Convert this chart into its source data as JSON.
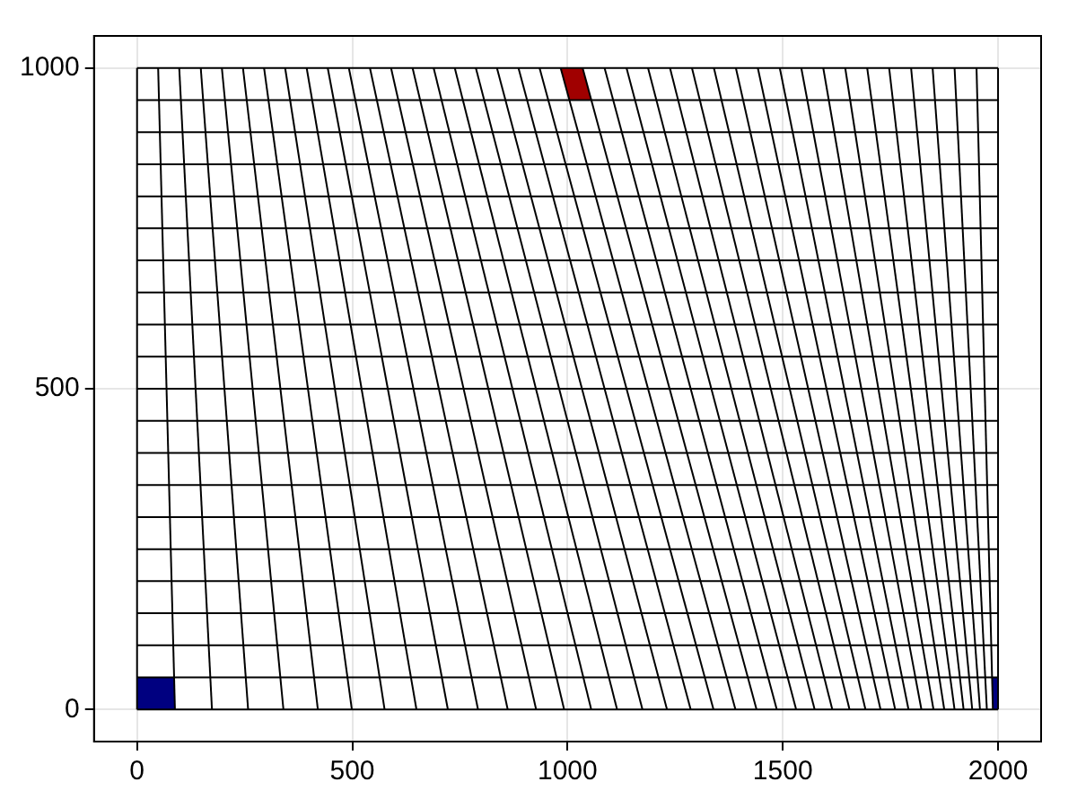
{
  "chart_data": {
    "type": "line",
    "xlim": [
      -100,
      2100
    ],
    "ylim": [
      -50,
      1050
    ],
    "xticks": [
      0,
      500,
      1000,
      1500,
      2000
    ],
    "yticks": [
      0,
      500,
      1000
    ],
    "grid": true,
    "legend": false,
    "marker": "none",
    "line_style": "solid",
    "series": [
      {
        "type": "area",
        "color": "#000080",
        "x": [
          0,
          88,
          86,
          0,
          0
        ],
        "values": [
          0,
          0,
          50,
          50,
          0
        ]
      },
      {
        "type": "area",
        "color": "#a00000",
        "x": [
          984,
          1035,
          1055,
          1004,
          984
        ],
        "values": [
          1000,
          1000,
          950,
          950,
          1000
        ]
      },
      {
        "type": "area",
        "color": "#000080",
        "x": [
          1988,
          2000,
          2000,
          1986,
          1988
        ],
        "values": [
          0,
          0,
          50,
          50,
          0
        ]
      },
      {
        "color": "#000000",
        "x": [
          0,
          0
        ],
        "values": [
          0,
          1000
        ]
      },
      {
        "color": "#000000",
        "x": [
          88,
          49
        ],
        "values": [
          0,
          1000
        ]
      },
      {
        "color": "#000000",
        "x": [
          174,
          98
        ],
        "values": [
          0,
          1000
        ]
      },
      {
        "color": "#000000",
        "x": [
          258,
          148
        ],
        "values": [
          0,
          1000
        ]
      },
      {
        "color": "#000000",
        "x": [
          340,
          197
        ],
        "values": [
          0,
          1000
        ]
      },
      {
        "color": "#000000",
        "x": [
          420,
          246
        ],
        "values": [
          0,
          1000
        ]
      },
      {
        "color": "#000000",
        "x": [
          499,
          295
        ],
        "values": [
          0,
          1000
        ]
      },
      {
        "color": "#000000",
        "x": [
          575,
          344
        ],
        "values": [
          0,
          1000
        ]
      },
      {
        "color": "#000000",
        "x": [
          649,
          394
        ],
        "values": [
          0,
          1000
        ]
      },
      {
        "color": "#000000",
        "x": [
          722,
          443
        ],
        "values": [
          0,
          1000
        ]
      },
      {
        "color": "#000000",
        "x": [
          792,
          492
        ],
        "values": [
          0,
          1000
        ]
      },
      {
        "color": "#000000",
        "x": [
          861,
          541
        ],
        "values": [
          0,
          1000
        ]
      },
      {
        "color": "#000000",
        "x": [
          927,
          590
        ],
        "values": [
          0,
          1000
        ]
      },
      {
        "color": "#000000",
        "x": [
          992,
          640
        ],
        "values": [
          0,
          1000
        ]
      },
      {
        "color": "#000000",
        "x": [
          1055,
          689
        ],
        "values": [
          0,
          1000
        ]
      },
      {
        "color": "#000000",
        "x": [
          1115,
          738
        ],
        "values": [
          0,
          1000
        ]
      },
      {
        "color": "#000000",
        "x": [
          1174,
          787
        ],
        "values": [
          0,
          1000
        ]
      },
      {
        "color": "#000000",
        "x": [
          1231,
          836
        ],
        "values": [
          0,
          1000
        ]
      },
      {
        "color": "#000000",
        "x": [
          1286,
          886
        ],
        "values": [
          0,
          1000
        ]
      },
      {
        "color": "#000000",
        "x": [
          1339,
          935
        ],
        "values": [
          0,
          1000
        ]
      },
      {
        "color": "#000000",
        "x": [
          1390,
          984
        ],
        "values": [
          0,
          1000
        ]
      },
      {
        "color": "#000000",
        "x": [
          1439,
          1035
        ],
        "values": [
          0,
          1000
        ]
      },
      {
        "color": "#000000",
        "x": [
          1486,
          1086
        ],
        "values": [
          0,
          1000
        ]
      },
      {
        "color": "#000000",
        "x": [
          1531,
          1137
        ],
        "values": [
          0,
          1000
        ]
      },
      {
        "color": "#000000",
        "x": [
          1574,
          1187
        ],
        "values": [
          0,
          1000
        ]
      },
      {
        "color": "#000000",
        "x": [
          1615,
          1238
        ],
        "values": [
          0,
          1000
        ]
      },
      {
        "color": "#000000",
        "x": [
          1655,
          1289
        ],
        "values": [
          0,
          1000
        ]
      },
      {
        "color": "#000000",
        "x": [
          1692,
          1340
        ],
        "values": [
          0,
          1000
        ]
      },
      {
        "color": "#000000",
        "x": [
          1727,
          1391
        ],
        "values": [
          0,
          1000
        ]
      },
      {
        "color": "#000000",
        "x": [
          1761,
          1442
        ],
        "values": [
          0,
          1000
        ]
      },
      {
        "color": "#000000",
        "x": [
          1792,
          1493
        ],
        "values": [
          0,
          1000
        ]
      },
      {
        "color": "#000000",
        "x": [
          1822,
          1543
        ],
        "values": [
          0,
          1000
        ]
      },
      {
        "color": "#000000",
        "x": [
          1850,
          1594
        ],
        "values": [
          0,
          1000
        ]
      },
      {
        "color": "#000000",
        "x": [
          1875,
          1645
        ],
        "values": [
          0,
          1000
        ]
      },
      {
        "color": "#000000",
        "x": [
          1899,
          1696
        ],
        "values": [
          0,
          1000
        ]
      },
      {
        "color": "#000000",
        "x": [
          1920,
          1747
        ],
        "values": [
          0,
          1000
        ]
      },
      {
        "color": "#000000",
        "x": [
          1940,
          1798
        ],
        "values": [
          0,
          1000
        ]
      },
      {
        "color": "#000000",
        "x": [
          1958,
          1848
        ],
        "values": [
          0,
          1000
        ]
      },
      {
        "color": "#000000",
        "x": [
          1974,
          1899
        ],
        "values": [
          0,
          1000
        ]
      },
      {
        "color": "#000000",
        "x": [
          1988,
          1950
        ],
        "values": [
          0,
          1000
        ]
      },
      {
        "color": "#000000",
        "x": [
          2000,
          2000
        ],
        "values": [
          0,
          1000
        ]
      },
      {
        "color": "#000000",
        "x": [
          0,
          2000
        ],
        "values": [
          0,
          0
        ]
      },
      {
        "color": "#000000",
        "x": [
          0,
          2000
        ],
        "values": [
          50,
          50
        ]
      },
      {
        "color": "#000000",
        "x": [
          0,
          2000
        ],
        "values": [
          100,
          100
        ]
      },
      {
        "color": "#000000",
        "x": [
          0,
          2000
        ],
        "values": [
          150,
          150
        ]
      },
      {
        "color": "#000000",
        "x": [
          0,
          2000
        ],
        "values": [
          200,
          200
        ]
      },
      {
        "color": "#000000",
        "x": [
          0,
          2000
        ],
        "values": [
          250,
          250
        ]
      },
      {
        "color": "#000000",
        "x": [
          0,
          2000
        ],
        "values": [
          300,
          300
        ]
      },
      {
        "color": "#000000",
        "x": [
          0,
          2000
        ],
        "values": [
          350,
          350
        ]
      },
      {
        "color": "#000000",
        "x": [
          0,
          2000
        ],
        "values": [
          400,
          400
        ]
      },
      {
        "color": "#000000",
        "x": [
          0,
          2000
        ],
        "values": [
          450,
          450
        ]
      },
      {
        "color": "#000000",
        "x": [
          0,
          2000
        ],
        "values": [
          500,
          500
        ]
      },
      {
        "color": "#000000",
        "x": [
          0,
          2000
        ],
        "values": [
          550,
          550
        ]
      },
      {
        "color": "#000000",
        "x": [
          0,
          2000
        ],
        "values": [
          600,
          600
        ]
      },
      {
        "color": "#000000",
        "x": [
          0,
          2000
        ],
        "values": [
          650,
          650
        ]
      },
      {
        "color": "#000000",
        "x": [
          0,
          2000
        ],
        "values": [
          700,
          700
        ]
      },
      {
        "color": "#000000",
        "x": [
          0,
          2000
        ],
        "values": [
          750,
          750
        ]
      },
      {
        "color": "#000000",
        "x": [
          0,
          2000
        ],
        "values": [
          800,
          800
        ]
      },
      {
        "color": "#000000",
        "x": [
          0,
          2000
        ],
        "values": [
          850,
          850
        ]
      },
      {
        "color": "#000000",
        "x": [
          0,
          2000
        ],
        "values": [
          900,
          900
        ]
      },
      {
        "color": "#000000",
        "x": [
          0,
          2000
        ],
        "values": [
          950,
          950
        ]
      },
      {
        "color": "#000000",
        "x": [
          0,
          2000
        ],
        "values": [
          1000,
          1000
        ]
      }
    ]
  }
}
